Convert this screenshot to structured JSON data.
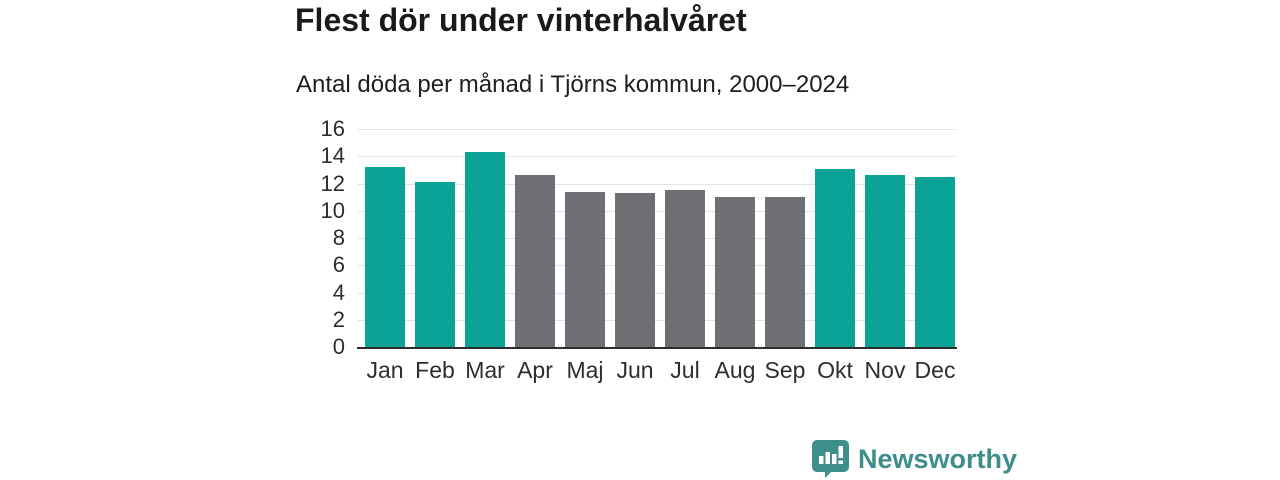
{
  "header": {
    "title": "Flest dör under vinterhalvåret",
    "subtitle": "Antal döda per månad i Tjörns kommun, 2000–2024"
  },
  "chart_data": {
    "type": "bar",
    "title": "Flest dör under vinterhalvåret",
    "subtitle": "Antal döda per månad i Tjörns kommun, 2000–2024",
    "categories": [
      "Jan",
      "Feb",
      "Mar",
      "Apr",
      "Maj",
      "Jun",
      "Jul",
      "Aug",
      "Sep",
      "Okt",
      "Nov",
      "Dec"
    ],
    "values": [
      13.2,
      12.1,
      14.3,
      12.6,
      11.4,
      11.3,
      11.5,
      11.0,
      11.0,
      13.1,
      12.6,
      12.5
    ],
    "groups": [
      "winter",
      "winter",
      "winter",
      "summer",
      "summer",
      "summer",
      "summer",
      "summer",
      "summer",
      "winter",
      "winter",
      "winter"
    ],
    "colors": {
      "winter": "#0aa396",
      "summer": "#6f6e73"
    },
    "xlabel": "",
    "ylabel": "",
    "ylim": [
      0,
      16
    ],
    "yticks": [
      0,
      2,
      4,
      6,
      8,
      10,
      12,
      14,
      16
    ],
    "grid": true,
    "legend_position": "none",
    "axis_color": "#2d2d2d",
    "gridline_color": "#e2e2e2"
  },
  "footer": {
    "logo_text": "Newsworthy",
    "logo_color": "#3e8f8b"
  }
}
